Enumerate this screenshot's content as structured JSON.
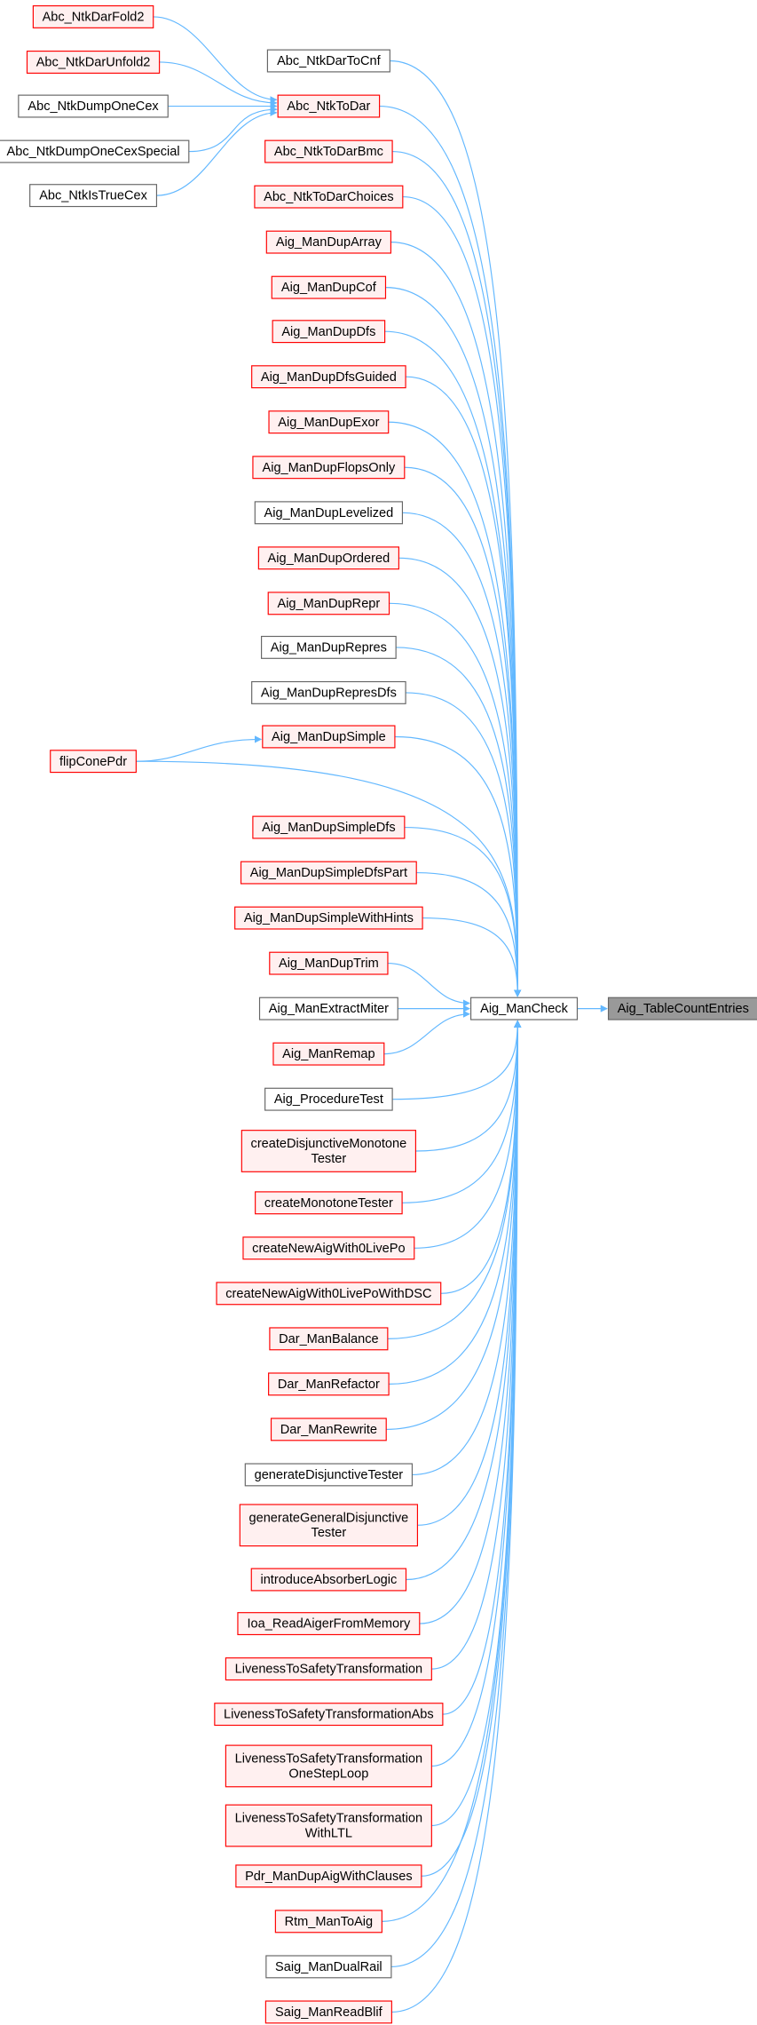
{
  "nodes": [
    {
      "lines": [
        "Abc_NtkDarFold2"
      ],
      "border": "#ff0000",
      "fill": "#fff0f0"
    },
    {
      "lines": [
        "Abc_NtkDarUnfold2"
      ],
      "border": "#ff0000",
      "fill": "#fff0f0"
    },
    {
      "lines": [
        "Abc_NtkDumpOneCex"
      ],
      "border": "#666666",
      "fill": "#ffffff"
    },
    {
      "lines": [
        "Abc_NtkDumpOneCexSpecial"
      ],
      "border": "#666666",
      "fill": "#ffffff"
    },
    {
      "lines": [
        "Abc_NtkIsTrueCex"
      ],
      "border": "#666666",
      "fill": "#ffffff"
    },
    {
      "lines": [
        "flipConePdr"
      ],
      "border": "#ff0000",
      "fill": "#fff0f0"
    },
    {
      "lines": [
        "Abc_NtkDarToCnf"
      ],
      "border": "#666666",
      "fill": "#ffffff"
    },
    {
      "lines": [
        "Abc_NtkToDar"
      ],
      "border": "#ff0000",
      "fill": "#fff0f0"
    },
    {
      "lines": [
        "Abc_NtkToDarBmc"
      ],
      "border": "#ff0000",
      "fill": "#fff0f0"
    },
    {
      "lines": [
        "Abc_NtkToDarChoices"
      ],
      "border": "#ff0000",
      "fill": "#fff0f0"
    },
    {
      "lines": [
        "Aig_ManDupArray"
      ],
      "border": "#ff0000",
      "fill": "#fff0f0"
    },
    {
      "lines": [
        "Aig_ManDupCof"
      ],
      "border": "#ff0000",
      "fill": "#fff0f0"
    },
    {
      "lines": [
        "Aig_ManDupDfs"
      ],
      "border": "#ff0000",
      "fill": "#fff0f0"
    },
    {
      "lines": [
        "Aig_ManDupDfsGuided"
      ],
      "border": "#ff0000",
      "fill": "#fff0f0"
    },
    {
      "lines": [
        "Aig_ManDupExor"
      ],
      "border": "#ff0000",
      "fill": "#fff0f0"
    },
    {
      "lines": [
        "Aig_ManDupFlopsOnly"
      ],
      "border": "#ff0000",
      "fill": "#fff0f0"
    },
    {
      "lines": [
        "Aig_ManDupLevelized"
      ],
      "border": "#666666",
      "fill": "#ffffff"
    },
    {
      "lines": [
        "Aig_ManDupOrdered"
      ],
      "border": "#ff0000",
      "fill": "#fff0f0"
    },
    {
      "lines": [
        "Aig_ManDupRepr"
      ],
      "border": "#ff0000",
      "fill": "#fff0f0"
    },
    {
      "lines": [
        "Aig_ManDupRepres"
      ],
      "border": "#666666",
      "fill": "#ffffff"
    },
    {
      "lines": [
        "Aig_ManDupRepresDfs"
      ],
      "border": "#666666",
      "fill": "#ffffff"
    },
    {
      "lines": [
        "Aig_ManDupSimple"
      ],
      "border": "#ff0000",
      "fill": "#fff0f0"
    },
    {
      "lines": [
        "Aig_ManDupSimpleDfs"
      ],
      "border": "#ff0000",
      "fill": "#fff0f0"
    },
    {
      "lines": [
        "Aig_ManDupSimpleDfsPart"
      ],
      "border": "#ff0000",
      "fill": "#fff0f0"
    },
    {
      "lines": [
        "Aig_ManDupSimpleWithHints"
      ],
      "border": "#ff0000",
      "fill": "#fff0f0"
    },
    {
      "lines": [
        "Aig_ManDupTrim"
      ],
      "border": "#ff0000",
      "fill": "#fff0f0"
    },
    {
      "lines": [
        "Aig_ManExtractMiter"
      ],
      "border": "#666666",
      "fill": "#ffffff"
    },
    {
      "lines": [
        "Aig_ManRemap"
      ],
      "border": "#ff0000",
      "fill": "#fff0f0"
    },
    {
      "lines": [
        "Aig_ProcedureTest"
      ],
      "border": "#666666",
      "fill": "#ffffff"
    },
    {
      "lines": [
        "createDisjunctiveMonotone",
        "Tester"
      ],
      "border": "#ff0000",
      "fill": "#fff0f0"
    },
    {
      "lines": [
        "createMonotoneTester"
      ],
      "border": "#ff0000",
      "fill": "#fff0f0"
    },
    {
      "lines": [
        "createNewAigWith0LivePo"
      ],
      "border": "#ff0000",
      "fill": "#fff0f0"
    },
    {
      "lines": [
        "createNewAigWith0LivePoWithDSC"
      ],
      "border": "#ff0000",
      "fill": "#fff0f0"
    },
    {
      "lines": [
        "Dar_ManBalance"
      ],
      "border": "#ff0000",
      "fill": "#fff0f0"
    },
    {
      "lines": [
        "Dar_ManRefactor"
      ],
      "border": "#ff0000",
      "fill": "#fff0f0"
    },
    {
      "lines": [
        "Dar_ManRewrite"
      ],
      "border": "#ff0000",
      "fill": "#fff0f0"
    },
    {
      "lines": [
        "generateDisjunctiveTester"
      ],
      "border": "#666666",
      "fill": "#ffffff"
    },
    {
      "lines": [
        "generateGeneralDisjunctive",
        "Tester"
      ],
      "border": "#ff0000",
      "fill": "#fff0f0"
    },
    {
      "lines": [
        "introduceAbsorberLogic"
      ],
      "border": "#ff0000",
      "fill": "#fff0f0"
    },
    {
      "lines": [
        "Ioa_ReadAigerFromMemory"
      ],
      "border": "#ff0000",
      "fill": "#fff0f0"
    },
    {
      "lines": [
        "LivenessToSafetyTransformation"
      ],
      "border": "#ff0000",
      "fill": "#fff0f0"
    },
    {
      "lines": [
        "LivenessToSafetyTransformationAbs"
      ],
      "border": "#ff0000",
      "fill": "#fff0f0"
    },
    {
      "lines": [
        "LivenessToSafetyTransformation",
        "OneStepLoop"
      ],
      "border": "#ff0000",
      "fill": "#fff0f0"
    },
    {
      "lines": [
        "LivenessToSafetyTransformation",
        "WithLTL"
      ],
      "border": "#ff0000",
      "fill": "#fff0f0"
    },
    {
      "lines": [
        "Pdr_ManDupAigWithClauses"
      ],
      "border": "#ff0000",
      "fill": "#fff0f0"
    },
    {
      "lines": [
        "Rtm_ManToAig"
      ],
      "border": "#ff0000",
      "fill": "#fff0f0"
    },
    {
      "lines": [
        "Saig_ManDualRail"
      ],
      "border": "#666666",
      "fill": "#ffffff"
    },
    {
      "lines": [
        "Saig_ManReadBlif"
      ],
      "border": "#ff0000",
      "fill": "#fff0f0"
    },
    {
      "lines": [
        "Aig_ManCheck"
      ],
      "border": "#666666",
      "fill": "#ffffff"
    },
    {
      "lines": [
        "Aig_TableCountEntries"
      ],
      "border": "#666666",
      "fill": "#999999"
    }
  ],
  "edge_color": "#63b8ff"
}
